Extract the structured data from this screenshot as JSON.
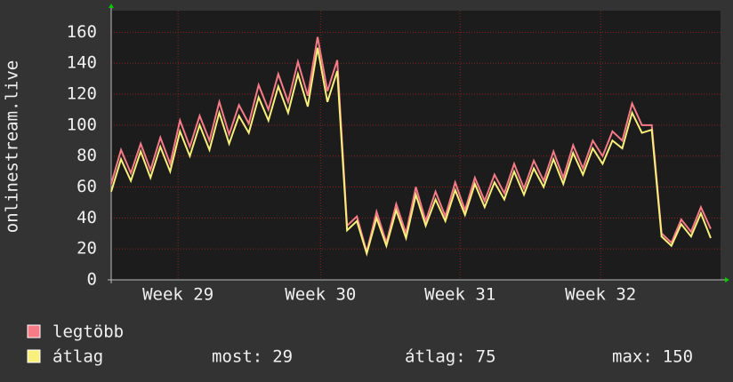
{
  "chart_data": {
    "type": "line",
    "ylabel": "onlinestream.live",
    "xlim": [
      0,
      62
    ],
    "xticks": [
      {
        "value": 6.8,
        "label": "Week 29"
      },
      {
        "value": 21.3,
        "label": "Week 30"
      },
      {
        "value": 35.5,
        "label": "Week 31"
      },
      {
        "value": 49.8,
        "label": "Week 32"
      }
    ],
    "ylim": [
      0,
      174
    ],
    "yticks": [
      0,
      20,
      40,
      60,
      80,
      100,
      120,
      140,
      160
    ],
    "grid": true,
    "series": [
      {
        "name": "legtöbb",
        "color": "#f77b86",
        "values": [
          62,
          84,
          69,
          88,
          71,
          92,
          75,
          103,
          86,
          106,
          90,
          115,
          94,
          113,
          101,
          126,
          110,
          133,
          115,
          141,
          119,
          157,
          122,
          142,
          35,
          41,
          18,
          44,
          24,
          49,
          30,
          60,
          38,
          57,
          41,
          63,
          45,
          66,
          51,
          68,
          56,
          75,
          59,
          77,
          64,
          83,
          66,
          87,
          72,
          90,
          80,
          96,
          90,
          114,
          100,
          100,
          30,
          24,
          39,
          31,
          47,
          33
        ]
      },
      {
        "name": "átlag",
        "color": "#f8f07a",
        "values": [
          57,
          78,
          64,
          83,
          66,
          86,
          70,
          96,
          80,
          100,
          84,
          108,
          88,
          106,
          95,
          118,
          103,
          125,
          108,
          133,
          112,
          150,
          115,
          135,
          32,
          38,
          17,
          40,
          22,
          45,
          27,
          55,
          35,
          52,
          38,
          58,
          42,
          62,
          47,
          63,
          52,
          70,
          55,
          72,
          60,
          78,
          62,
          82,
          68,
          85,
          75,
          90,
          85,
          108,
          95,
          97,
          28,
          22,
          36,
          28,
          43,
          27
        ]
      }
    ],
    "stats": [
      {
        "label": "most:",
        "value": 29
      },
      {
        "label": "átlag:",
        "value": 75
      },
      {
        "label": "max:",
        "value": 150
      }
    ]
  }
}
